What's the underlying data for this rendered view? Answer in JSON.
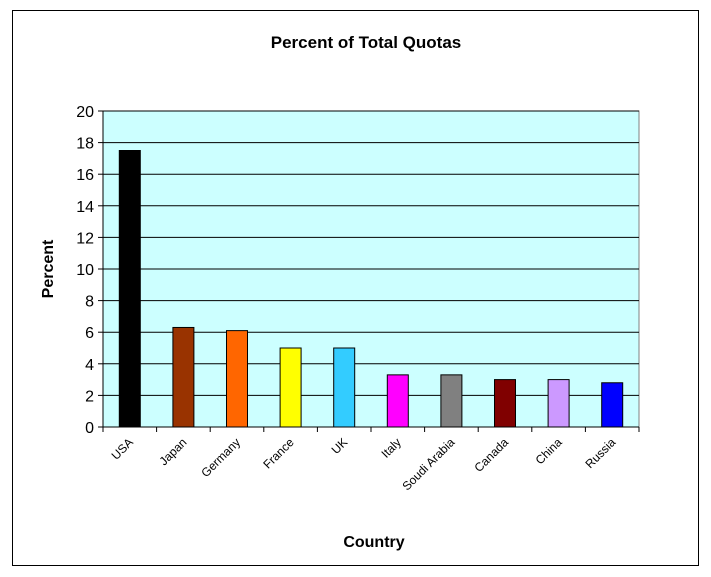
{
  "chart_data": {
    "type": "bar",
    "title": "Percent of Total Quotas",
    "xlabel": "Country",
    "ylabel": "Percent",
    "categories": [
      "USA",
      "Japan",
      "Germany",
      "France",
      "UK",
      "Italy",
      "Soudi Arabia",
      "Canada",
      "China",
      "Russia"
    ],
    "values": [
      17.5,
      6.3,
      6.1,
      5.0,
      5.0,
      3.3,
      3.3,
      3.0,
      3.0,
      2.8
    ],
    "bar_colors": [
      "#000000",
      "#993300",
      "#FF6600",
      "#FFFF00",
      "#33CCFF",
      "#FF00FF",
      "#808080",
      "#800000",
      "#CC99FF",
      "#0000FF"
    ],
    "ylim": [
      0,
      20
    ],
    "yticks": [
      0,
      2,
      4,
      6,
      8,
      10,
      12,
      14,
      16,
      18,
      20
    ],
    "grid": true,
    "plot_background": "#CCFFFF",
    "legend": "none"
  }
}
